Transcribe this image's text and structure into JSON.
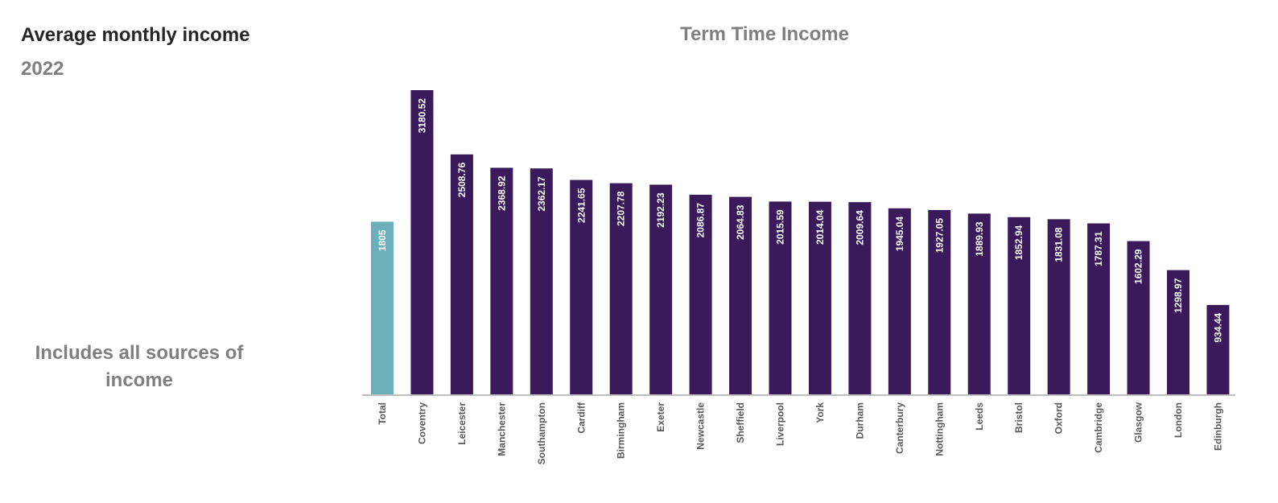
{
  "side": {
    "title": "Average monthly income",
    "year": "2022",
    "note": "Includes all sources of income"
  },
  "colors": {
    "highlight": "#6aafba",
    "bar": "#3b1a5c",
    "axis": "#bfbfbf"
  },
  "chart_data": {
    "type": "bar",
    "title": "Term Time Income",
    "xlabel": "",
    "ylabel": "",
    "ylim": [
      0,
      3300
    ],
    "grid": false,
    "highlight_category": "Total",
    "categories": [
      "Total",
      "Coventry",
      "Leicester",
      "Manchester",
      "Southampton",
      "Cardiff",
      "Birmingham",
      "Exeter",
      "Newcastle",
      "Sheffield",
      "Liverpool",
      "York",
      "Durham",
      "Canterbury",
      "Nottingham",
      "Leeds",
      "Bristol",
      "Oxford",
      "Cambridge",
      "Glasgow",
      "London",
      "Edinburgh"
    ],
    "values": [
      1805,
      3180.52,
      2508.76,
      2368.92,
      2362.17,
      2241.65,
      2207.78,
      2192.23,
      2086.87,
      2064.83,
      2015.59,
      2014.04,
      2009.64,
      1945.04,
      1927.05,
      1889.93,
      1852.94,
      1831.08,
      1787.31,
      1602.29,
      1298.97,
      934.44
    ],
    "value_labels": [
      "1805",
      "3180.52",
      "2508.76",
      "2368.92",
      "2362.17",
      "2241.65",
      "2207.78",
      "2192.23",
      "2086.87",
      "2064.83",
      "2015.59",
      "2014.04",
      "2009.64",
      "1945.04",
      "1927.05",
      "1889.93",
      "1852.94",
      "1831.08",
      "1787.31",
      "1602.29",
      "1298.97",
      "934.44"
    ]
  }
}
